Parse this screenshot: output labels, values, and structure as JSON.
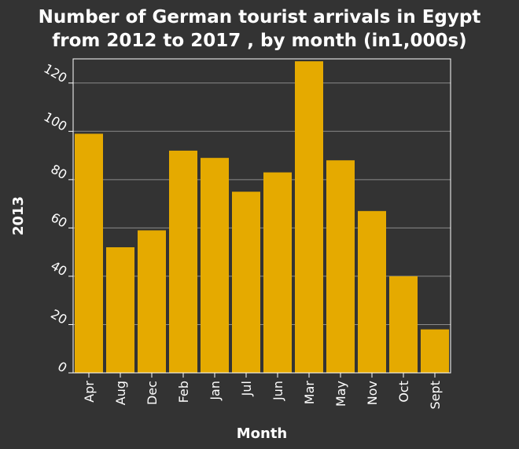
{
  "chart_data": {
    "type": "bar",
    "title": "Number of German tourist arrivals in Egypt from 2012 to 2017 , by month (in1,000s)",
    "title_lines": [
      "Number of German tourist arrivals in Egypt",
      "from 2012 to 2017 , by month (in1,000s)"
    ],
    "xlabel": "Month",
    "ylabel": "2013",
    "categories": [
      "Apr",
      "Aug",
      "Dec",
      "Feb",
      "Jan",
      "Jul",
      "Jun",
      "Mar",
      "May",
      "Nov",
      "Oct",
      "Sept"
    ],
    "values": [
      99,
      52,
      59,
      92,
      89,
      75,
      83,
      129,
      88,
      67,
      40,
      18
    ],
    "ylim": [
      0,
      130
    ],
    "yticks": [
      0,
      20,
      40,
      60,
      80,
      100,
      120
    ],
    "grid": true,
    "bar_color": "#e5aa00",
    "background_color": "#333333",
    "grid_color": "#8a8a8a",
    "text_color": "#ffffff"
  }
}
